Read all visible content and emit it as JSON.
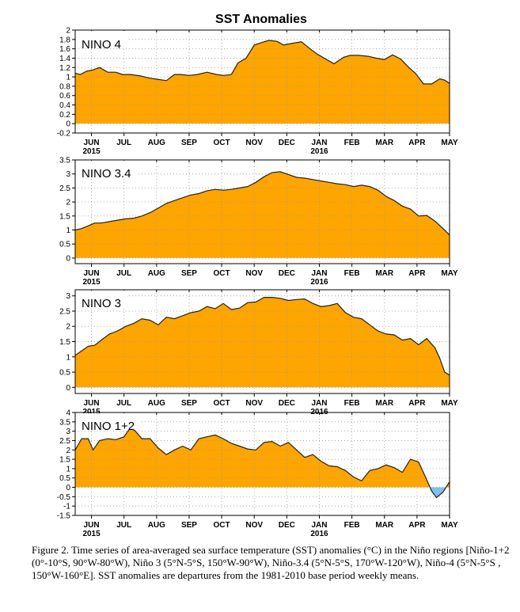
{
  "figure": {
    "title": "SST Anomalies",
    "caption": "Figure 2. Time series of area-averaged sea surface temperature (SST) anomalies (°C) in the Niño regions [Niño-1+2 (0°-10°S, 90°W-80°W), Niño 3 (5°N-5°S, 150°W-90°W), Niño-3.4 (5°N-5°S, 170°W-120°W), Niño-4 (5°N-5°S , 150°W-160°E]. SST anomalies are departures from the 1981-2010 base period weekly means."
  },
  "colors": {
    "positive_fill": "#ffa500",
    "negative_fill": "#7ec0ee",
    "line": "#222222",
    "grid": "#999999"
  },
  "x_axis": {
    "months": [
      "JUN",
      "JUL",
      "AUG",
      "SEP",
      "OCT",
      "NOV",
      "DEC",
      "JAN",
      "FEB",
      "MAR",
      "APR",
      "MAY"
    ],
    "year_labels": [
      {
        "under": "JUN",
        "text": "2015"
      },
      {
        "under": "JAN",
        "text": "2016"
      }
    ],
    "range_months": [
      -0.5,
      11.0
    ]
  },
  "chart_data": [
    {
      "type": "area",
      "name": "NINO 4",
      "ylim": [
        -0.2,
        2.0
      ],
      "yticks": [
        -0.2,
        0,
        0.2,
        0.4,
        0.6,
        0.8,
        1,
        1.2,
        1.4,
        1.6,
        1.8,
        2
      ],
      "ytick_labels": [
        "-0.2",
        "0",
        "0.2",
        "0.4",
        "0.6",
        "0.8",
        "1",
        "1.2",
        "1.4",
        "1.6",
        "1.8",
        "2"
      ],
      "grid": true,
      "x": [
        -0.5,
        -0.35,
        -0.15,
        0.05,
        0.25,
        0.5,
        0.75,
        0.95,
        1.2,
        1.5,
        1.75,
        2.0,
        2.3,
        2.55,
        2.75,
        3.0,
        3.25,
        3.55,
        3.85,
        4.05,
        4.3,
        4.5,
        4.75,
        5.0,
        5.25,
        5.45,
        5.7,
        5.9,
        6.2,
        6.45,
        6.75,
        6.95,
        7.2,
        7.45,
        7.75,
        7.95,
        8.2,
        8.5,
        8.75,
        9.0,
        9.25,
        9.5,
        9.75,
        9.95,
        10.2,
        10.45,
        10.7,
        10.85,
        11.0
      ],
      "values": [
        1.08,
        1.05,
        1.12,
        1.15,
        1.2,
        1.1,
        1.1,
        1.05,
        1.05,
        1.02,
        0.98,
        0.95,
        0.92,
        1.05,
        1.05,
        1.03,
        1.05,
        1.1,
        1.05,
        1.03,
        1.05,
        1.3,
        1.4,
        1.68,
        1.74,
        1.78,
        1.76,
        1.68,
        1.72,
        1.75,
        1.58,
        1.48,
        1.38,
        1.28,
        1.42,
        1.46,
        1.46,
        1.44,
        1.4,
        1.37,
        1.47,
        1.38,
        1.2,
        1.08,
        0.85,
        0.85,
        0.96,
        0.93,
        0.86
      ]
    },
    {
      "type": "area",
      "name": "NINO 3.4",
      "ylim": [
        -0.2,
        3.5
      ],
      "yticks": [
        0,
        0.5,
        1,
        1.5,
        2,
        2.5,
        3,
        3.5
      ],
      "ytick_labels": [
        "0",
        "0.5",
        "1",
        "1.5",
        "2",
        "2.5",
        "3",
        "3.5"
      ],
      "grid": true,
      "x": [
        -0.5,
        -0.3,
        -0.1,
        0.1,
        0.3,
        0.55,
        0.8,
        1.05,
        1.3,
        1.55,
        1.8,
        2.05,
        2.3,
        2.55,
        2.8,
        3.05,
        3.3,
        3.55,
        3.8,
        4.05,
        4.3,
        4.55,
        4.8,
        5.05,
        5.3,
        5.55,
        5.8,
        6.05,
        6.3,
        6.55,
        6.8,
        7.05,
        7.3,
        7.55,
        7.8,
        8.05,
        8.3,
        8.55,
        8.8,
        9.05,
        9.3,
        9.55,
        9.8,
        10.05,
        10.3,
        10.55,
        10.8,
        11.0
      ],
      "values": [
        1.0,
        1.05,
        1.15,
        1.25,
        1.25,
        1.3,
        1.35,
        1.4,
        1.42,
        1.5,
        1.62,
        1.78,
        1.95,
        2.05,
        2.15,
        2.25,
        2.3,
        2.4,
        2.45,
        2.42,
        2.45,
        2.5,
        2.55,
        2.7,
        2.9,
        3.05,
        3.08,
        2.98,
        2.88,
        2.85,
        2.8,
        2.75,
        2.7,
        2.65,
        2.62,
        2.55,
        2.6,
        2.55,
        2.42,
        2.2,
        2.05,
        1.85,
        1.75,
        1.5,
        1.52,
        1.32,
        1.05,
        0.82
      ]
    },
    {
      "type": "area",
      "name": "NINO 3",
      "ylim": [
        -0.2,
        3.2
      ],
      "yticks": [
        0,
        0.5,
        1,
        1.5,
        2,
        2.5,
        3
      ],
      "ytick_labels": [
        "0",
        "0.5",
        "1",
        "1.5",
        "2",
        "2.5",
        "3"
      ],
      "grid": true,
      "x": [
        -0.5,
        -0.3,
        -0.1,
        0.1,
        0.3,
        0.55,
        0.8,
        1.05,
        1.3,
        1.55,
        1.8,
        2.05,
        2.3,
        2.55,
        2.8,
        3.05,
        3.3,
        3.55,
        3.8,
        4.05,
        4.3,
        4.55,
        4.8,
        5.05,
        5.3,
        5.55,
        5.8,
        6.05,
        6.3,
        6.55,
        6.8,
        7.05,
        7.3,
        7.55,
        7.8,
        8.05,
        8.3,
        8.55,
        8.8,
        9.05,
        9.3,
        9.55,
        9.8,
        10.05,
        10.3,
        10.55,
        10.7,
        10.85,
        11.0
      ],
      "values": [
        1.05,
        1.2,
        1.35,
        1.38,
        1.55,
        1.75,
        1.85,
        2.0,
        2.1,
        2.25,
        2.2,
        2.05,
        2.3,
        2.25,
        2.35,
        2.45,
        2.5,
        2.65,
        2.58,
        2.75,
        2.55,
        2.6,
        2.78,
        2.8,
        2.95,
        2.95,
        2.92,
        2.85,
        2.88,
        2.9,
        2.75,
        2.65,
        2.68,
        2.75,
        2.45,
        2.3,
        2.25,
        2.05,
        1.85,
        1.75,
        1.72,
        1.55,
        1.6,
        1.4,
        1.6,
        1.3,
        0.95,
        0.5,
        0.4
      ]
    },
    {
      "type": "area",
      "name": "NINO 1+2",
      "ylim": [
        -1.5,
        4.0
      ],
      "yticks": [
        -1.5,
        -1,
        -0.5,
        0,
        0.5,
        1,
        1.5,
        2,
        2.5,
        3,
        3.5,
        4
      ],
      "ytick_labels": [
        "-1.5",
        "-1",
        "-0.5",
        "0",
        "0.5",
        "1",
        "1.5",
        "2",
        "2.5",
        "3",
        "3.5",
        "4"
      ],
      "grid": true,
      "x": [
        -0.5,
        -0.3,
        -0.1,
        0.05,
        0.25,
        0.5,
        0.75,
        1.0,
        1.2,
        1.35,
        1.55,
        1.8,
        2.05,
        2.3,
        2.55,
        2.8,
        3.05,
        3.3,
        3.55,
        3.8,
        4.05,
        4.3,
        4.55,
        4.8,
        5.05,
        5.3,
        5.55,
        5.8,
        6.05,
        6.3,
        6.55,
        6.8,
        7.05,
        7.3,
        7.55,
        7.8,
        8.05,
        8.3,
        8.55,
        8.8,
        9.05,
        9.3,
        9.55,
        9.8,
        10.05,
        10.3,
        10.45,
        10.6,
        10.8,
        11.0
      ],
      "values": [
        2.0,
        2.6,
        2.6,
        2.0,
        2.5,
        2.6,
        2.55,
        2.7,
        3.2,
        3.0,
        2.6,
        2.6,
        2.1,
        1.75,
        2.0,
        2.2,
        2.0,
        2.6,
        2.7,
        2.8,
        2.6,
        2.35,
        2.2,
        2.05,
        2.0,
        2.4,
        2.45,
        2.2,
        2.4,
        2.0,
        1.6,
        1.75,
        1.4,
        1.15,
        1.1,
        0.9,
        0.55,
        0.35,
        0.9,
        1.0,
        1.2,
        1.05,
        0.8,
        1.5,
        1.35,
        0.4,
        -0.2,
        -0.55,
        -0.25,
        0.3
      ]
    }
  ]
}
